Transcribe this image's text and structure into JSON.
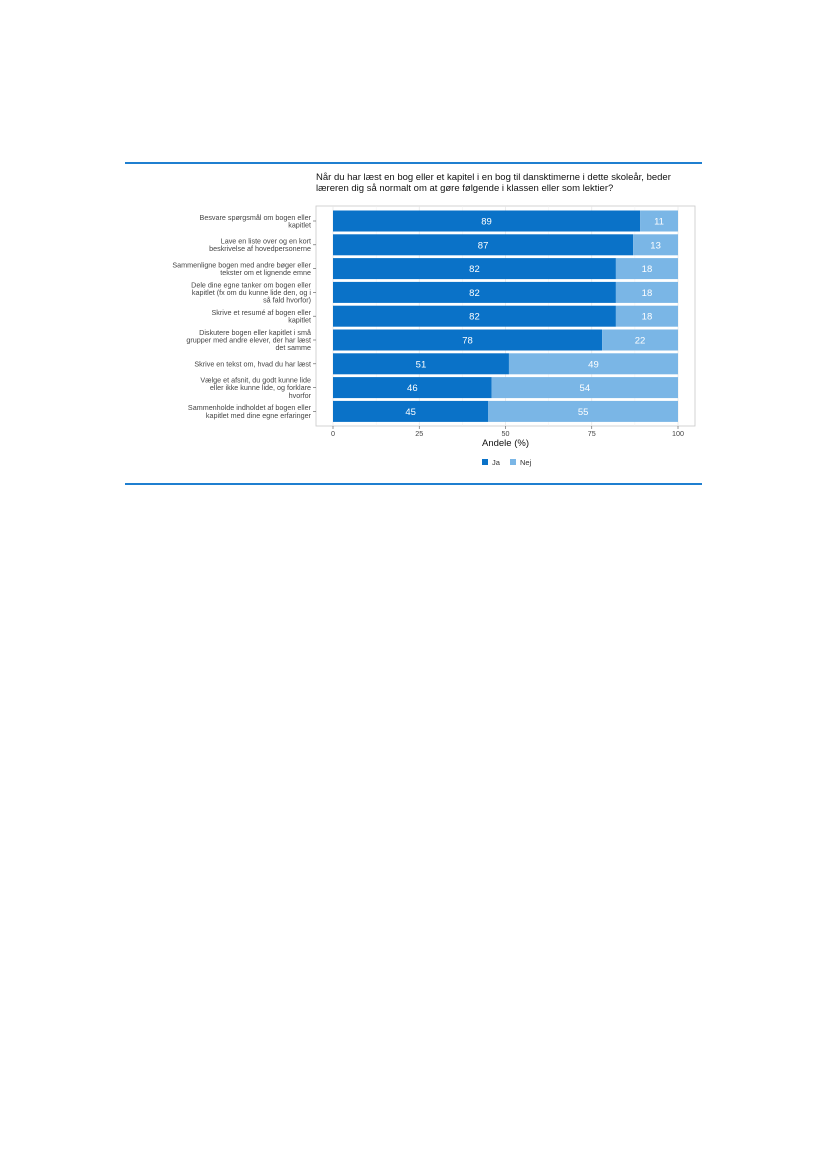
{
  "chart_data": {
    "type": "bar",
    "orientation": "horizontal",
    "stacked": true,
    "title": "Når du har læst en bog eller et kapitel i en bog til dansktimerne i dette skoleår, beder læreren dig så normalt om at gøre følgende i klassen eller som lektier?",
    "xlabel": "Andele (%)",
    "xlim": [
      0,
      100
    ],
    "xticks": [
      0,
      25,
      50,
      75,
      100
    ],
    "categories": [
      [
        "Besvare spørgsmål om bogen eller",
        "kapitlet"
      ],
      [
        "Lave en liste over og en kort",
        "beskrivelse af hovedpersonerne"
      ],
      [
        "Sammenligne bogen med andre bøger eller",
        "tekster om et lignende emne"
      ],
      [
        "Dele dine egne tanker om bogen eller",
        "kapitlet (fx om du kunne lide den, og i",
        "så fald hvorfor)"
      ],
      [
        "Skrive et resumé af bogen eller",
        "kapitlet"
      ],
      [
        "Diskutere bogen eller kapitlet i små",
        "grupper med andre elever, der har læst",
        "det samme"
      ],
      [
        "Skrive en tekst om, hvad du har læst"
      ],
      [
        "Vælge et afsnit, du godt kunne lide",
        "eller ikke kunne lide, og forklare",
        "hvorfor"
      ],
      [
        "Sammenholde indholdet af bogen eller",
        "kapitlet med dine egne erfaringer"
      ]
    ],
    "series": [
      {
        "name": "Ja",
        "color": "#0a72c8",
        "values": [
          89,
          87,
          82,
          82,
          82,
          78,
          51,
          46,
          45
        ]
      },
      {
        "name": "Nej",
        "color": "#7ab6e6",
        "values": [
          11,
          13,
          18,
          18,
          18,
          22,
          49,
          54,
          55
        ]
      }
    ],
    "legend_position": "bottom",
    "grid": true
  }
}
